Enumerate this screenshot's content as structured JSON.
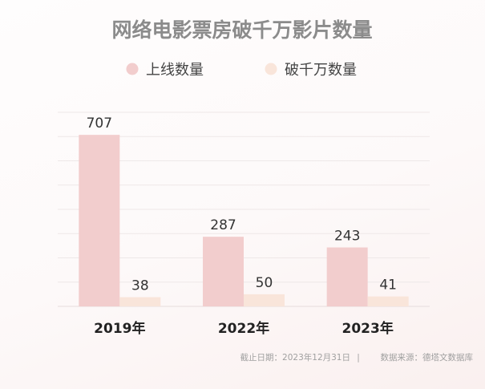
{
  "chart_data": {
    "type": "bar",
    "title": "网络电影票房破千万影片数量",
    "categories": [
      "2019年",
      "2022年",
      "2023年"
    ],
    "series": [
      {
        "name": "上线数量",
        "values": [
          707,
          287,
          243
        ]
      },
      {
        "name": "破千万数量",
        "values": [
          38,
          50,
          41
        ]
      }
    ],
    "colors": [
      "#f2cdcd",
      "#f9e5da"
    ],
    "xlabel": "",
    "ylabel": "",
    "ylim": [
      0,
      800
    ],
    "grid": true,
    "legend_position": "top-center"
  },
  "footer": {
    "date": "截止日期：2023年12月31日",
    "separator": "|",
    "source": "数据来源：德塔文数据库"
  }
}
